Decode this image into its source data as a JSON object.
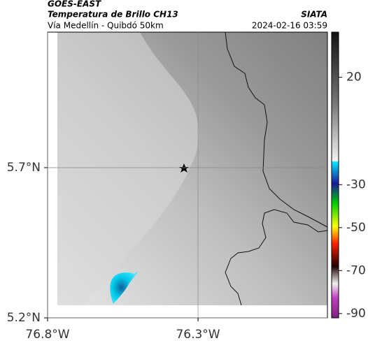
{
  "header": {
    "source": "GOES-EAST",
    "title": "Temperatura de Brillo CH13",
    "subtitle": "Vía Medellín - Quibdó 50km",
    "agency": "SIATA",
    "datetime": "2024-02-16 03:59"
  },
  "map": {
    "latlim": [
      5.2,
      6.151
    ],
    "lonlim": [
      -76.8,
      -75.87
    ],
    "latticks": [
      {
        "value": 5.7,
        "label": "5.7°N"
      },
      {
        "value": 5.2,
        "label": "5.2°N"
      }
    ],
    "lonticks": [
      {
        "value": -76.8,
        "label": "76.8°W"
      },
      {
        "value": -76.3,
        "label": "76.3°W"
      }
    ]
  },
  "colorbar": {
    "lim": [
      -92,
      41
    ],
    "ticks": [
      20,
      -30,
      -50,
      -70,
      -90
    ]
  }
}
